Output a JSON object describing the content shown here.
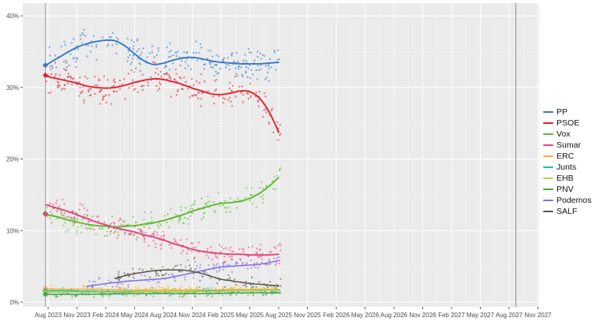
{
  "chart_data": {
    "type": "scatter",
    "title": "",
    "description": "Opinion polling scatter with smoothed trend lines per party; x axis is time, y axis is vote share percent",
    "x_axis": {
      "tick_labels": [
        "Aug 2023",
        "Nov 2023",
        "Feb 2024",
        "May 2024",
        "Aug 2024",
        "Nov 2024",
        "Feb 2025",
        "May 2025",
        "Aug 2025",
        "Nov 2025",
        "Feb 2026",
        "May 2026",
        "Aug 2026",
        "Nov 2026",
        "Feb 2027",
        "May 2027",
        "Aug 2027",
        "Nov 2027"
      ],
      "tick_months": [
        1,
        4,
        7,
        10,
        13,
        16,
        19,
        22,
        25,
        28,
        31,
        34,
        37,
        40,
        43,
        46,
        49,
        52
      ],
      "months_origin": "Jul 2023"
    },
    "y_axis": {
      "tick_labels": [
        "0%",
        "10%",
        "20%",
        "30%",
        "40%"
      ],
      "tick_values": [
        0,
        10,
        20,
        30,
        40
      ],
      "minor_values": [
        5,
        15,
        25,
        35
      ],
      "range": [
        0,
        42
      ]
    },
    "grid": true,
    "legend_position": "right",
    "panel_bg": "#EBEBEB",
    "grid_major_color": "#FFFFFF",
    "grid_minor_color": "#F4F4F4",
    "axis_text_color": "#4D4D4D",
    "tick_mark_color": "#333333",
    "vlines": [
      {
        "id": "election-2023",
        "month": 0.71,
        "color": "#A3A3A3"
      },
      {
        "id": "latest-possible-election",
        "month": 49.7,
        "color": "#8A8A8A"
      }
    ],
    "series": [
      {
        "name": "PP",
        "color": "#3579C8",
        "election_result": 33.1,
        "scatter_n": 240,
        "scatter_spread": 1.5,
        "trend": [
          [
            0.7,
            33.1
          ],
          [
            1,
            33.3
          ],
          [
            2,
            34.1
          ],
          [
            3,
            34.9
          ],
          [
            4,
            35.6
          ],
          [
            5,
            36.1
          ],
          [
            6,
            36.4
          ],
          [
            7,
            36.6
          ],
          [
            8,
            36.5
          ],
          [
            9,
            35.8
          ],
          [
            10,
            34.7
          ],
          [
            11,
            33.7
          ],
          [
            12,
            33.2
          ],
          [
            13,
            33.4
          ],
          [
            14,
            33.8
          ],
          [
            15,
            34.1
          ],
          [
            16,
            34.2
          ],
          [
            17,
            34.0
          ],
          [
            18,
            33.7
          ],
          [
            19,
            33.5
          ],
          [
            20,
            33.4
          ],
          [
            21,
            33.3
          ],
          [
            22,
            33.3
          ],
          [
            23,
            33.3
          ],
          [
            24,
            33.4
          ],
          [
            25,
            33.5
          ]
        ]
      },
      {
        "name": "PSOE",
        "color": "#E0232E",
        "election_result": 31.7,
        "scatter_n": 240,
        "scatter_spread": 1.5,
        "trend": [
          [
            0.7,
            31.7
          ],
          [
            1,
            31.5
          ],
          [
            2,
            31.2
          ],
          [
            3,
            30.9
          ],
          [
            4,
            30.6
          ],
          [
            5,
            30.2
          ],
          [
            6,
            30.0
          ],
          [
            7,
            29.9
          ],
          [
            8,
            30.0
          ],
          [
            9,
            30.3
          ],
          [
            10,
            30.7
          ],
          [
            11,
            31.0
          ],
          [
            12,
            31.2
          ],
          [
            13,
            31.1
          ],
          [
            14,
            30.8
          ],
          [
            15,
            30.4
          ],
          [
            16,
            29.9
          ],
          [
            17,
            29.5
          ],
          [
            18,
            29.1
          ],
          [
            19,
            29.0
          ],
          [
            20,
            29.2
          ],
          [
            21,
            29.5
          ],
          [
            22,
            29.4
          ],
          [
            23,
            28.5
          ],
          [
            24,
            26.6
          ],
          [
            25,
            23.8
          ]
        ]
      },
      {
        "name": "Vox",
        "color": "#5FBB2B",
        "election_result": 12.4,
        "scatter_n": 220,
        "scatter_spread": 1.0,
        "trend": [
          [
            0.7,
            12.4
          ],
          [
            1,
            12.2
          ],
          [
            2,
            11.9
          ],
          [
            3,
            11.5
          ],
          [
            4,
            11.2
          ],
          [
            5,
            10.9
          ],
          [
            6,
            10.7
          ],
          [
            7,
            10.6
          ],
          [
            8,
            10.5
          ],
          [
            9,
            10.6
          ],
          [
            10,
            10.7
          ],
          [
            11,
            10.9
          ],
          [
            12,
            11.1
          ],
          [
            13,
            11.4
          ],
          [
            14,
            11.8
          ],
          [
            15,
            12.2
          ],
          [
            16,
            12.7
          ],
          [
            17,
            13.1
          ],
          [
            18,
            13.5
          ],
          [
            19,
            13.8
          ],
          [
            20,
            13.9
          ],
          [
            21,
            14.1
          ],
          [
            22,
            14.5
          ],
          [
            23,
            15.2
          ],
          [
            24,
            16.2
          ],
          [
            25,
            17.4
          ]
        ]
      },
      {
        "name": "Sumar",
        "color": "#E8417E",
        "election_result": 12.3,
        "scatter_n": 220,
        "scatter_spread": 1.0,
        "trend": [
          [
            0.8,
            13.6
          ],
          [
            2,
            13.1
          ],
          [
            3,
            12.7
          ],
          [
            4,
            12.2
          ],
          [
            5,
            11.7
          ],
          [
            6,
            11.2
          ],
          [
            7,
            10.8
          ],
          [
            8,
            10.4
          ],
          [
            9,
            10.1
          ],
          [
            10,
            9.8
          ],
          [
            11,
            9.4
          ],
          [
            12,
            9.1
          ],
          [
            13,
            8.7
          ],
          [
            14,
            8.2
          ],
          [
            15,
            7.8
          ],
          [
            16,
            7.4
          ],
          [
            17,
            7.1
          ],
          [
            18,
            6.9
          ],
          [
            19,
            6.8
          ],
          [
            20,
            6.7
          ],
          [
            21,
            6.7
          ],
          [
            22,
            6.6
          ],
          [
            23,
            6.6
          ],
          [
            24,
            6.6
          ],
          [
            25,
            6.7
          ]
        ]
      },
      {
        "name": "ERC",
        "color": "#FBB237",
        "election_result": 1.9,
        "scatter_n": 120,
        "scatter_spread": 0.35,
        "trend": [
          [
            0.7,
            1.9
          ],
          [
            3,
            1.8
          ],
          [
            6,
            1.8
          ],
          [
            9,
            1.7
          ],
          [
            12,
            1.7
          ],
          [
            15,
            1.7
          ],
          [
            18,
            1.7
          ],
          [
            21,
            1.8
          ],
          [
            25,
            1.8
          ]
        ]
      },
      {
        "name": "Junts",
        "color": "#16C2B0",
        "election_result": 1.6,
        "scatter_n": 120,
        "scatter_spread": 0.35,
        "trend": [
          [
            0.7,
            1.6
          ],
          [
            3,
            1.6
          ],
          [
            6,
            1.5
          ],
          [
            9,
            1.5
          ],
          [
            12,
            1.5
          ],
          [
            15,
            1.5
          ],
          [
            18,
            1.6
          ],
          [
            21,
            1.6
          ],
          [
            25,
            1.7
          ]
        ]
      },
      {
        "name": "EHB",
        "color": "#B9CC45",
        "election_result": 1.4,
        "scatter_n": 120,
        "scatter_spread": 0.35,
        "trend": [
          [
            0.7,
            1.4
          ],
          [
            3,
            1.4
          ],
          [
            6,
            1.4
          ],
          [
            9,
            1.4
          ],
          [
            12,
            1.5
          ],
          [
            15,
            1.5
          ],
          [
            18,
            1.5
          ],
          [
            21,
            1.6
          ],
          [
            25,
            1.7
          ]
        ]
      },
      {
        "name": "PNV",
        "color": "#3FA34D",
        "election_result": 1.1,
        "scatter_n": 120,
        "scatter_spread": 0.3,
        "trend": [
          [
            0.7,
            1.1
          ],
          [
            3,
            1.1
          ],
          [
            6,
            1.1
          ],
          [
            9,
            1.2
          ],
          [
            12,
            1.2
          ],
          [
            15,
            1.2
          ],
          [
            18,
            1.2
          ],
          [
            21,
            1.3
          ],
          [
            25,
            1.3
          ]
        ]
      },
      {
        "name": "Podemos",
        "color": "#8170E0",
        "election_result": null,
        "scatter_n": 110,
        "scatter_spread": 0.6,
        "trend": [
          [
            5,
            2.2
          ],
          [
            7,
            2.6
          ],
          [
            9,
            2.9
          ],
          [
            11,
            3.1
          ],
          [
            13,
            3.3
          ],
          [
            15,
            3.8
          ],
          [
            17,
            4.4
          ],
          [
            19,
            4.9
          ],
          [
            21,
            5.1
          ],
          [
            23,
            5.3
          ],
          [
            25,
            5.8
          ]
        ]
      },
      {
        "name": "SALF",
        "color": "#5A544C",
        "election_result": null,
        "scatter_n": 90,
        "scatter_spread": 0.6,
        "trend": [
          [
            8,
            3.3
          ],
          [
            9,
            3.7
          ],
          [
            10,
            4.0
          ],
          [
            11,
            4.2
          ],
          [
            12,
            4.4
          ],
          [
            13,
            4.5
          ],
          [
            14,
            4.5
          ],
          [
            15,
            4.5
          ],
          [
            16,
            4.3
          ],
          [
            17,
            4.0
          ],
          [
            18,
            3.6
          ],
          [
            19,
            3.2
          ],
          [
            20,
            3.0
          ],
          [
            21,
            2.8
          ],
          [
            22,
            2.6
          ],
          [
            23,
            2.5
          ],
          [
            24,
            2.4
          ],
          [
            25,
            2.3
          ]
        ]
      }
    ]
  }
}
